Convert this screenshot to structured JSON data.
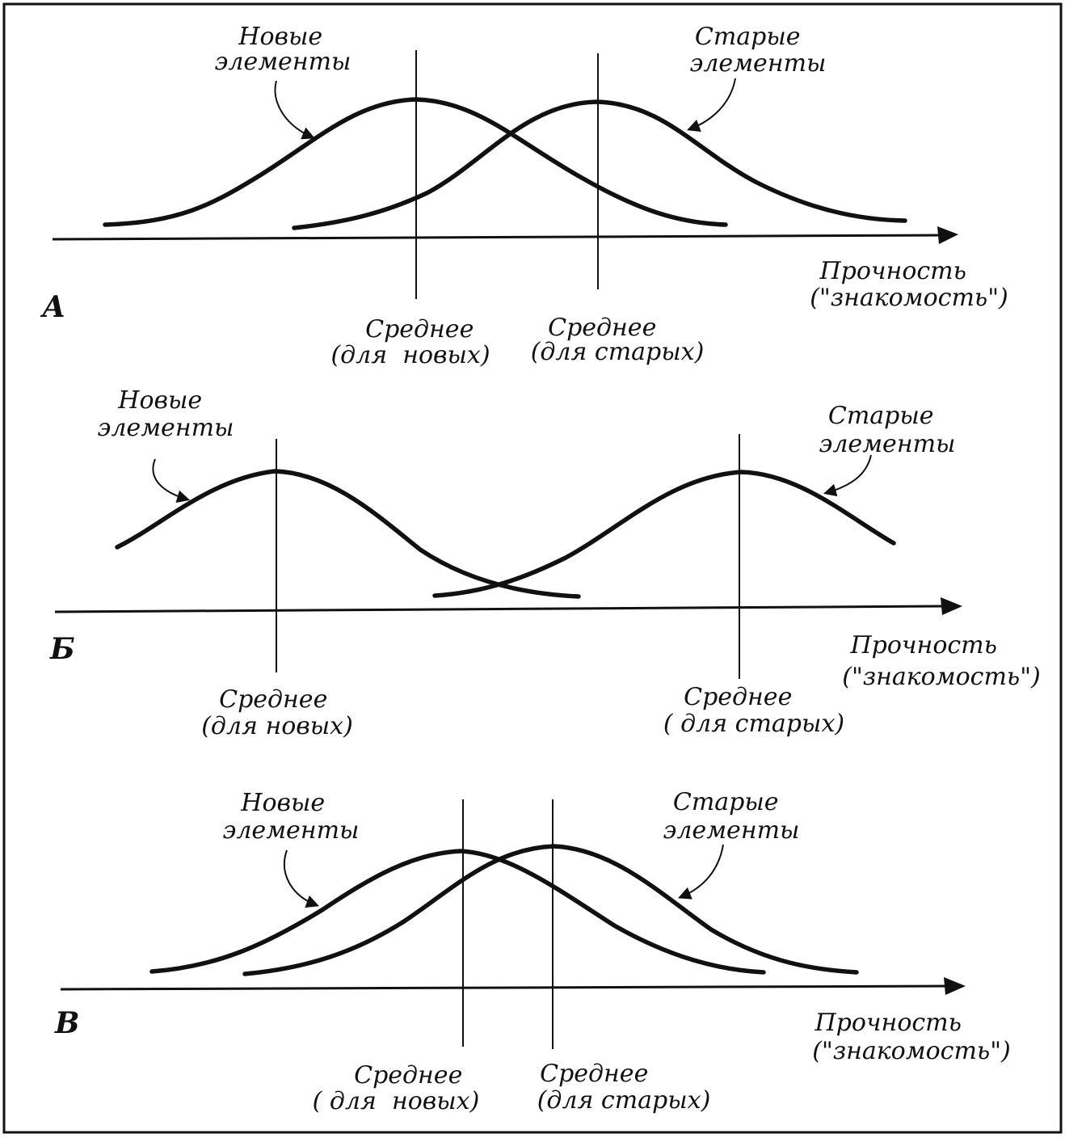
{
  "panels": [
    {
      "letter": "А",
      "new_label": [
        "Новые",
        "элементы"
      ],
      "old_label": [
        "Старые",
        "элементы"
      ],
      "axis_label": [
        "Прочность",
        "(\"знакомость\")"
      ],
      "new_mean_label": [
        "Среднее",
        "(для  новых)"
      ],
      "old_mean_label": [
        "Среднее",
        "(для старых)"
      ]
    },
    {
      "letter": "Б",
      "new_label": [
        "Новые",
        "элементы"
      ],
      "old_label": [
        "Старые",
        "элементы"
      ],
      "axis_label": [
        "Прочность",
        "(\"знакомость\")"
      ],
      "new_mean_label": [
        "Среднее",
        "(для новых)"
      ],
      "old_mean_label": [
        "Среднее",
        "( для старых)"
      ]
    },
    {
      "letter": "В",
      "new_label": [
        "Новые",
        "элементы"
      ],
      "old_label": [
        "Старые",
        "элементы"
      ],
      "axis_label": [
        "Прочность",
        "(\"знакомость\")"
      ],
      "new_mean_label": [
        "Среднее",
        "( для  новых)"
      ],
      "old_mean_label": [
        "Среднее",
        "(для старых)"
      ]
    }
  ]
}
